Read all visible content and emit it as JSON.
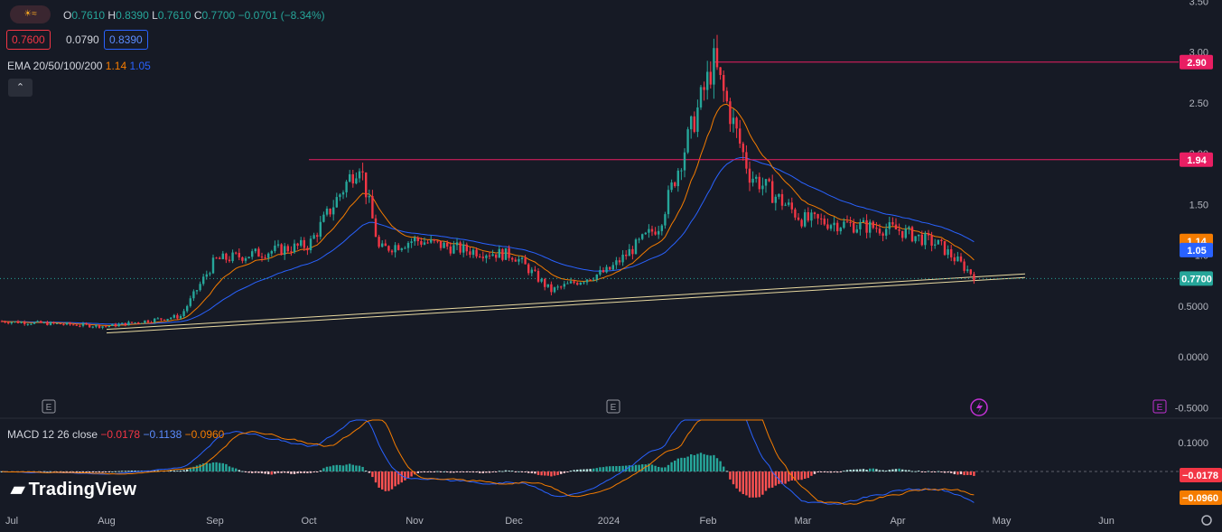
{
  "header": {
    "ohlc": {
      "o_label": "O",
      "o": "0.7610",
      "h_label": "H",
      "h": "0.8390",
      "l_label": "L",
      "l": "0.7610",
      "c_label": "C",
      "c": "0.7700",
      "change": "−0.0701 (−8.34%)"
    },
    "bid": "0.7600",
    "spread": "0.0790",
    "ask": "0.8390",
    "ema_label": "EMA 20/50/100/200",
    "ema_values": [
      "1.14",
      "1.05"
    ],
    "macd_label": "MACD 12 26 close",
    "macd_values": [
      "−0.0178",
      "−0.1138",
      "−0.0960"
    ],
    "collapse_icon": "chevron-up-icon",
    "logo_icon": "sun-icon",
    "brand": "TradingView"
  },
  "colors": {
    "bg": "#161a25",
    "up": "#26a69a",
    "down": "#f23645",
    "ema_short": "#f57c00",
    "ema_long": "#2962ff",
    "level": "#e91e63",
    "trend": "#e8d9a0"
  },
  "chart_data": {
    "type": "candlestick",
    "x_ticks": [
      "Jul",
      "Aug",
      "Sep",
      "Oct",
      "Nov",
      "Dec",
      "2024",
      "Feb",
      "Mar",
      "Apr",
      "May",
      "Jun"
    ],
    "y_ticks": [
      "3.50",
      "3.00",
      "2.50",
      "2.00",
      "1.50",
      "1.0",
      "0.5000",
      "0.0000",
      "-0.5000"
    ],
    "ylim": [
      -0.5,
      3.5
    ],
    "price_labels": [
      {
        "text": "2.90",
        "value": 2.9,
        "color": "#e91e63"
      },
      {
        "text": "1.94",
        "value": 1.94,
        "color": "#e91e63"
      },
      {
        "text": "1.14",
        "value": 1.14,
        "color": "#f57c00"
      },
      {
        "text": "1.05",
        "value": 1.05,
        "color": "#2962ff"
      },
      {
        "text": "0.7700",
        "value": 0.77,
        "color": "#26a69a"
      }
    ],
    "levels": [
      {
        "value": 2.9,
        "from": "Feb",
        "to": "axis"
      },
      {
        "value": 1.94,
        "from": "Oct",
        "to": "axis"
      }
    ],
    "trendline": [
      [
        "Aug",
        0.27
      ],
      [
        "Apr end",
        0.78
      ]
    ],
    "series_anchor": [
      [
        "Jul",
        0.35
      ],
      [
        "Aug",
        0.3
      ],
      [
        "Aug end",
        0.4
      ],
      [
        "Sep",
        0.95
      ],
      [
        "Oct",
        1.1
      ],
      [
        "Oct mid",
        1.92
      ],
      [
        "Oct end",
        1.05
      ],
      [
        "Nov",
        1.15
      ],
      [
        "Nov mid",
        1.05
      ],
      [
        "Dec",
        1.0
      ],
      [
        "Dec mid",
        0.65
      ],
      [
        "2024",
        0.85
      ],
      [
        "Jan mid",
        1.3
      ],
      [
        "Feb",
        2.9
      ],
      [
        "Feb mid",
        1.8
      ],
      [
        "Mar",
        1.35
      ],
      [
        "Mar mid",
        1.3
      ],
      [
        "Apr",
        1.25
      ],
      [
        "Apr mid",
        1.1
      ],
      [
        "Apr end",
        0.77
      ]
    ],
    "event_markers": [
      "E",
      "E",
      "E"
    ],
    "macd_ticks": [
      "0.1000",
      "−0.0178",
      "−0.0960"
    ]
  }
}
